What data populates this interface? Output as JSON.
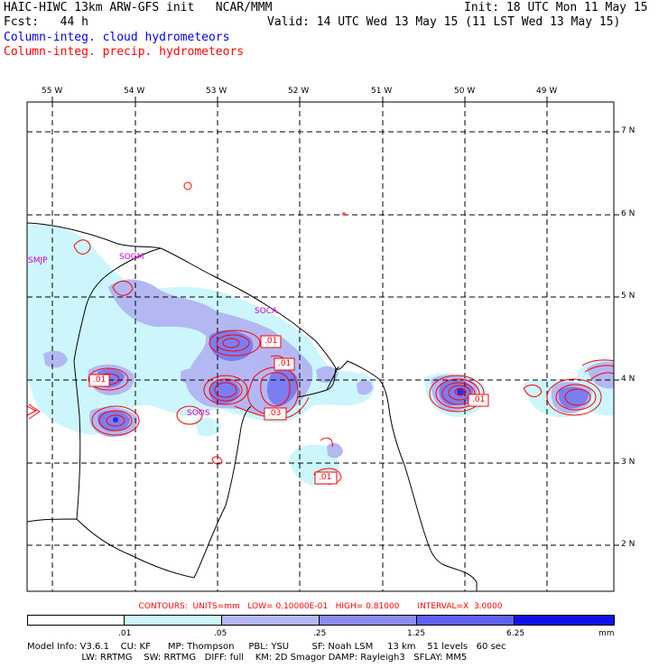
{
  "header": {
    "title": "HAIC-HIWC 13km ARW-GFS init   NCAR/MMM",
    "init": "Init: 18 UTC Mon 11 May 15",
    "fcst": "Fcst:   44 h",
    "valid": "Valid: 14 UTC Wed 13 May 15 (11 LST Wed 13 May 15)",
    "field1": "Column-integ. cloud hydrometeors",
    "field2": "Column-integ. precip. hydrometeors",
    "field1_color": "#0000ff",
    "field2_color": "#ff0000"
  },
  "map": {
    "lon_labels": [
      "55 W",
      "54 W",
      "53 W",
      "52 W",
      "51 W",
      "50 W",
      "49 W"
    ],
    "lat_labels": [
      "7 N",
      "6 N",
      "5 N",
      "4 N",
      "3 N",
      "2 N"
    ],
    "stations": [
      "SMJP",
      "SOGM",
      "SOCA",
      "SOOS"
    ],
    "contour_labels": [
      ".01",
      ".01",
      ".01",
      ".01",
      ".03",
      ".01",
      ".01"
    ]
  },
  "contours_line": "CONTOURS:  UNITS=mm   LOW= 0.10000E-01   HIGH= 0.81000       INTERVAL=X  3.0000",
  "colorbar": {
    "ticks": [
      ".01",
      ".05",
      ".25",
      "1.25",
      "6.25"
    ],
    "unit": "mm",
    "colors": [
      "#ffffff",
      "#ccf6fc",
      "#b3b8f2",
      "#8c8cf0",
      "#6060f0",
      "#3434ee",
      "#1010e8"
    ]
  },
  "model_info": {
    "line1": "Model Info: V3.6.1    CU: KF      MP: Thompson     PBL: YSU        SF: Noah LSM     13 km    51 levels   60 sec",
    "line2": "                   LW: RRTMG    SW: RRTMG   DIFF: full    KM: 2D Smagor DAMP: Rayleigh3   SFLAY: MM5"
  }
}
